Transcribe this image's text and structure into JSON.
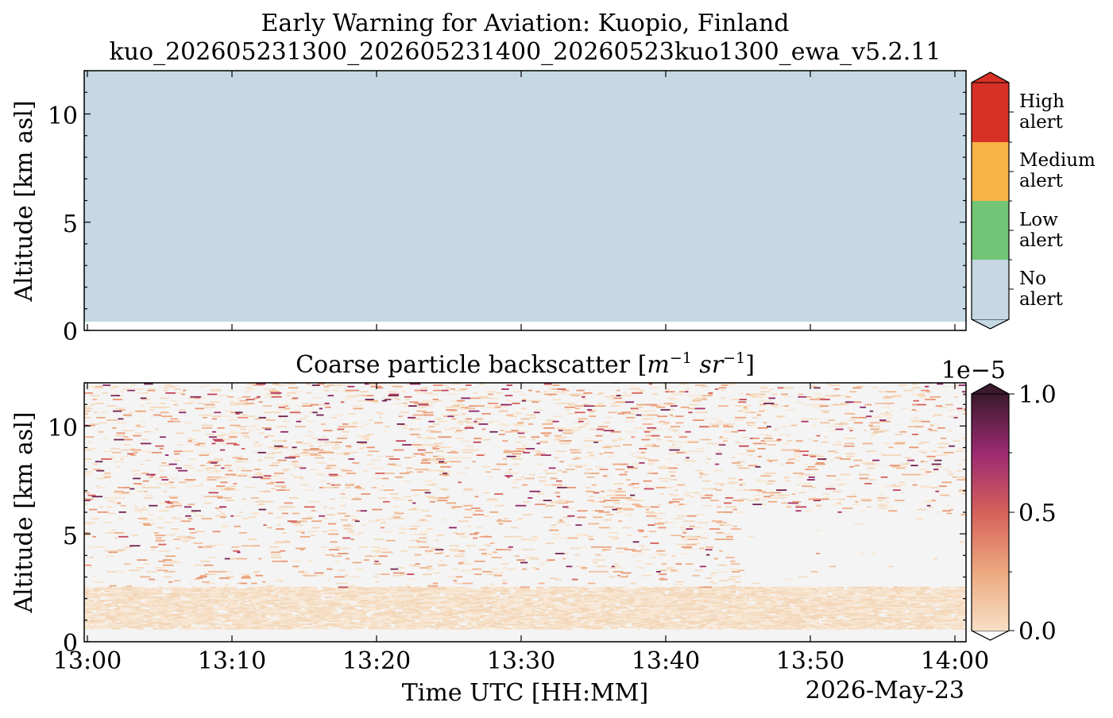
{
  "figure": {
    "title_line1": "Early Warning for Aviation: Kuopio, Finland",
    "title_line2": "kuo_202605231300_202605231400_20260523kuo1300_ewa_v5.2.11",
    "xlabel": "Time UTC [HH:MM]",
    "date_label": "2026-May-23"
  },
  "chart_data": [
    {
      "type": "heatmap",
      "title": "",
      "ylabel": "Altitude [km asl]",
      "xlim": [
        "13:00",
        "14:00"
      ],
      "ylim": [
        0,
        12
      ],
      "yticks": [
        "0",
        "5",
        "10"
      ],
      "fill": {
        "category": "No alert",
        "altitude_from_km": 0.4,
        "altitude_to_km": 12,
        "color": "#c5d8e3"
      },
      "colorbar": {
        "categories": [
          "No alert",
          "Low alert",
          "Medium alert",
          "High alert"
        ],
        "colors": [
          "#c5d8e3",
          "#72c476",
          "#f7b348",
          "#d73127"
        ],
        "labels": [
          {
            "line1": "No",
            "line2": "alert"
          },
          {
            "line1": "Low",
            "line2": "alert"
          },
          {
            "line1": "Medium",
            "line2": "alert"
          },
          {
            "line1": "High",
            "line2": "alert"
          }
        ]
      }
    },
    {
      "type": "heatmap",
      "title": "Coarse particle backscatter",
      "title_units": {
        "m": "m",
        "m_exp": "−1",
        "sr": "sr",
        "sr_exp": "−1"
      },
      "ylabel": "Altitude [km asl]",
      "xlabel": "Time UTC [HH:MM]",
      "xticks": [
        "13:00",
        "13:10",
        "13:20",
        "13:30",
        "13:40",
        "13:50",
        "14:00"
      ],
      "yticks": [
        "0",
        "5",
        "10"
      ],
      "xlim": [
        "13:00",
        "14:00"
      ],
      "ylim": [
        0,
        12
      ],
      "background_color": "#f4f4f4",
      "colorbar": {
        "min": 0.0,
        "max": 1.0,
        "ticks": [
          "0.0",
          "0.5",
          "1.0"
        ],
        "scale_label": "1e−5",
        "colors": [
          "#f7dfc5",
          "#eca87f",
          "#d6605a",
          "#9c2a72",
          "#3b1a2e"
        ]
      },
      "description_values": {
        "dense_layer_altitude_km": [
          0.6,
          2.5
        ],
        "sparse_noise_altitude_km": [
          2.5,
          12
        ],
        "clear_region_after": "13:45"
      }
    }
  ]
}
